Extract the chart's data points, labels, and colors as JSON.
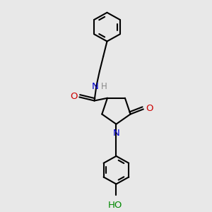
{
  "background_color": "#e8e8e8",
  "bond_color": "#000000",
  "N_color": "#0000cc",
  "O_color": "#cc0000",
  "OH_color": "#008800",
  "line_width": 1.5,
  "figsize": [
    3.0,
    3.0
  ],
  "dpi": 100,
  "xlim": [
    0,
    10
  ],
  "ylim": [
    0,
    10
  ]
}
